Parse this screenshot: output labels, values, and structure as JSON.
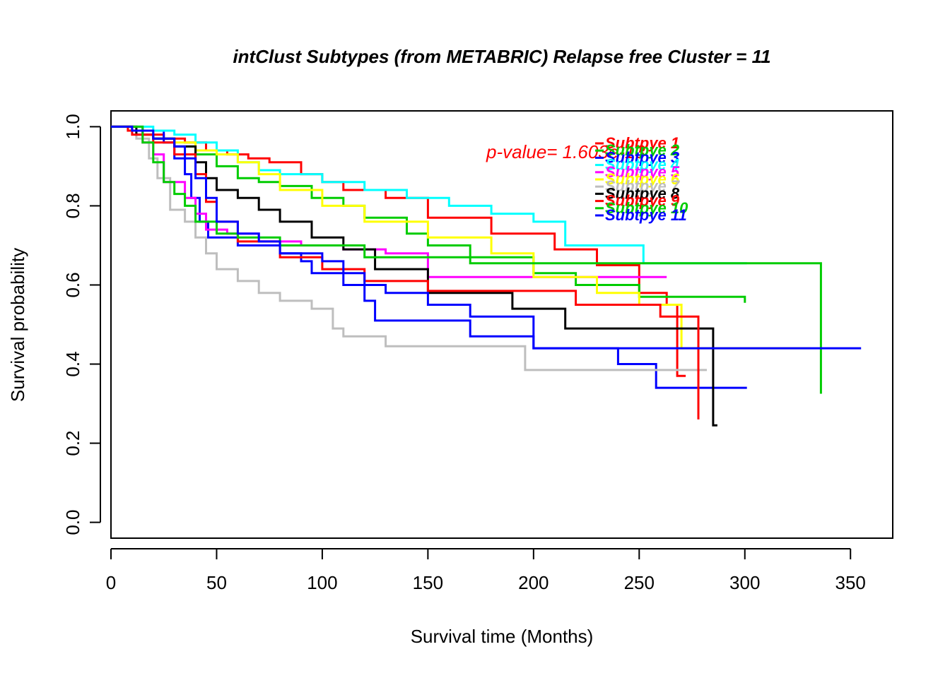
{
  "chart_data": {
    "type": "line",
    "title": "intClust Subtypes (from METABRIC) Relapse free Cluster = 11",
    "xlabel": "Survival time (Months)",
    "ylabel": "Survival probability",
    "xlim": [
      0,
      370
    ],
    "ylim": [
      -0.04,
      1.04
    ],
    "x_ticks": [
      0,
      50,
      100,
      150,
      200,
      250,
      300,
      350
    ],
    "y_ticks": [
      0.0,
      0.2,
      0.4,
      0.6,
      0.8,
      1.0
    ],
    "x_tick_labels": [
      "0",
      "50",
      "100",
      "150",
      "200",
      "250",
      "300",
      "350"
    ],
    "y_tick_labels": [
      "0.0",
      "0.2",
      "0.4",
      "0.6",
      "0.8",
      "1.0"
    ],
    "annotation": {
      "text": "p-value= 1.603e-13",
      "color": "#ff0000"
    },
    "legend_placement": "top-right inside plot",
    "series": [
      {
        "name": "Subtpye 1",
        "color": "#ff0000",
        "x": [
          0,
          8,
          15,
          25,
          35,
          45,
          55,
          65,
          75,
          90,
          100,
          110,
          130,
          150,
          180,
          210,
          230,
          250,
          263,
          268,
          272
        ],
        "y": [
          1.0,
          0.99,
          0.98,
          0.97,
          0.96,
          0.94,
          0.93,
          0.92,
          0.91,
          0.88,
          0.86,
          0.84,
          0.82,
          0.77,
          0.73,
          0.69,
          0.65,
          0.58,
          0.55,
          0.37,
          0.37
        ]
      },
      {
        "name": "Subtpye 2",
        "color": "#00cc00",
        "x": [
          0,
          10,
          20,
          30,
          40,
          50,
          60,
          70,
          80,
          95,
          110,
          120,
          140,
          150,
          170,
          200,
          220,
          250,
          300
        ],
        "y": [
          1.0,
          0.99,
          0.97,
          0.95,
          0.93,
          0.9,
          0.87,
          0.86,
          0.85,
          0.82,
          0.8,
          0.77,
          0.73,
          0.7,
          0.67,
          0.63,
          0.6,
          0.57,
          0.555
        ]
      },
      {
        "name": "Subtpye 3",
        "color": "#0000ff",
        "x": [
          0,
          15,
          25,
          30,
          35,
          38,
          42,
          46,
          60,
          80,
          90,
          95,
          110,
          120,
          125,
          170,
          200,
          240,
          258,
          301
        ],
        "y": [
          1.0,
          0.99,
          0.96,
          0.92,
          0.88,
          0.82,
          0.76,
          0.72,
          0.7,
          0.68,
          0.66,
          0.63,
          0.6,
          0.56,
          0.51,
          0.47,
          0.44,
          0.4,
          0.34,
          0.34
        ]
      },
      {
        "name": "Subtpye 4",
        "color": "#00ffff",
        "x": [
          0,
          10,
          20,
          30,
          40,
          50,
          60,
          70,
          80,
          100,
          120,
          140,
          160,
          180,
          200,
          215,
          230,
          252,
          301
        ],
        "y": [
          1.0,
          1.0,
          0.99,
          0.98,
          0.96,
          0.94,
          0.91,
          0.89,
          0.88,
          0.86,
          0.84,
          0.82,
          0.8,
          0.78,
          0.76,
          0.7,
          0.7,
          0.655,
          0.655
        ]
      },
      {
        "name": "Subtpye 5",
        "color": "#ff00ff",
        "x": [
          0,
          10,
          15,
          20,
          25,
          30,
          35,
          40,
          45,
          55,
          70,
          90,
          110,
          130,
          150,
          200,
          263
        ],
        "y": [
          1.0,
          0.99,
          0.96,
          0.93,
          0.86,
          0.86,
          0.82,
          0.78,
          0.74,
          0.73,
          0.71,
          0.7,
          0.69,
          0.68,
          0.62,
          0.62,
          0.62
        ]
      },
      {
        "name": "Subtpye 6",
        "color": "#ffff00",
        "x": [
          0,
          10,
          20,
          30,
          40,
          50,
          60,
          70,
          80,
          100,
          120,
          150,
          180,
          200,
          230,
          250,
          270,
          331
        ],
        "y": [
          1.0,
          0.99,
          0.97,
          0.96,
          0.94,
          0.93,
          0.91,
          0.88,
          0.84,
          0.8,
          0.76,
          0.72,
          0.68,
          0.62,
          0.58,
          0.55,
          0.44,
          0.44
        ]
      },
      {
        "name": "Subtpye 7",
        "color": "#bebebe",
        "x": [
          0,
          12,
          18,
          22,
          28,
          35,
          40,
          45,
          50,
          60,
          70,
          80,
          95,
          105,
          110,
          130,
          196,
          200,
          282
        ],
        "y": [
          1.0,
          0.97,
          0.92,
          0.87,
          0.79,
          0.76,
          0.72,
          0.68,
          0.64,
          0.61,
          0.58,
          0.56,
          0.54,
          0.49,
          0.47,
          0.445,
          0.385,
          0.385,
          0.385
        ]
      },
      {
        "name": "Subtpye 8",
        "color": "#000000",
        "x": [
          0,
          12,
          20,
          30,
          40,
          45,
          50,
          60,
          70,
          80,
          95,
          110,
          125,
          150,
          190,
          215,
          285,
          287
        ],
        "y": [
          1.0,
          0.98,
          0.97,
          0.95,
          0.91,
          0.87,
          0.84,
          0.82,
          0.79,
          0.76,
          0.72,
          0.69,
          0.64,
          0.58,
          0.54,
          0.49,
          0.245,
          0.245
        ]
      },
      {
        "name": "Subtpye 9",
        "color": "#ff0000",
        "x": [
          0,
          10,
          20,
          30,
          40,
          45,
          50,
          60,
          80,
          100,
          120,
          150,
          190,
          220,
          260,
          278
        ],
        "y": [
          1.0,
          0.98,
          0.96,
          0.93,
          0.88,
          0.81,
          0.76,
          0.71,
          0.67,
          0.64,
          0.61,
          0.585,
          0.585,
          0.55,
          0.52,
          0.26
        ]
      },
      {
        "name": "Subtpye 10",
        "color": "#00cc00",
        "x": [
          0,
          15,
          20,
          25,
          30,
          35,
          40,
          50,
          60,
          80,
          120,
          170,
          250,
          335,
          336
        ],
        "y": [
          1.0,
          0.96,
          0.91,
          0.86,
          0.83,
          0.8,
          0.76,
          0.73,
          0.72,
          0.7,
          0.67,
          0.655,
          0.655,
          0.655,
          0.325
        ]
      },
      {
        "name": "Subtpye 11",
        "color": "#0000ff",
        "x": [
          0,
          10,
          20,
          30,
          35,
          40,
          45,
          50,
          60,
          70,
          80,
          100,
          110,
          120,
          130,
          150,
          170,
          200,
          355
        ],
        "y": [
          1.0,
          0.99,
          0.97,
          0.95,
          0.92,
          0.87,
          0.82,
          0.76,
          0.73,
          0.71,
          0.68,
          0.66,
          0.63,
          0.6,
          0.58,
          0.55,
          0.52,
          0.44,
          0.44
        ]
      }
    ]
  }
}
